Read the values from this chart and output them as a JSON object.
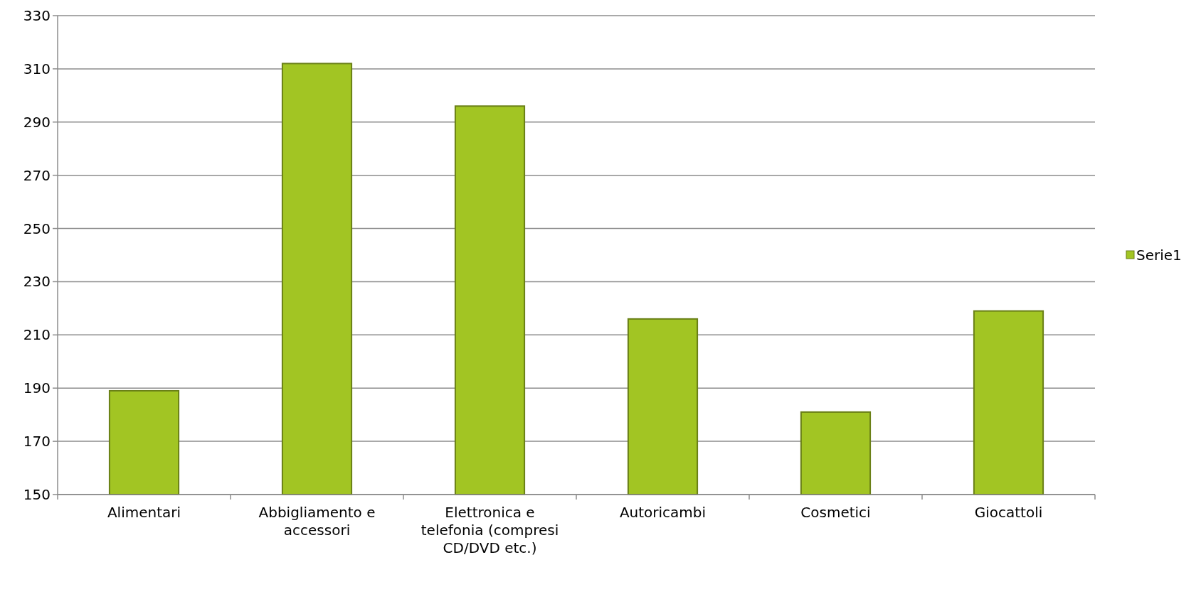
{
  "chart_data": {
    "type": "bar",
    "categories": [
      "Alimentari",
      "Abbigliamento e accessori",
      "Elettronica e telefonia (compresi CD/DVD etc.)",
      "Autoricambi",
      "Cosmetici",
      "Giocattoli"
    ],
    "series": [
      {
        "name": "Serie1",
        "color": "#a2c523",
        "values": [
          189,
          312,
          296,
          216,
          181,
          219
        ]
      }
    ],
    "ylim": [
      150,
      330
    ],
    "yticks": [
      150,
      170,
      190,
      210,
      230,
      250,
      270,
      290,
      310,
      330
    ],
    "grid": "y",
    "legend": "right"
  }
}
